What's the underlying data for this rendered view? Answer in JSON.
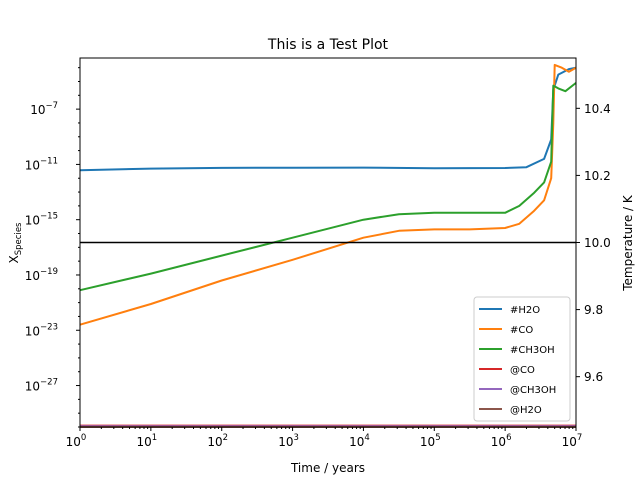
{
  "chart_data": {
    "type": "line",
    "title": "This is a Test Plot",
    "xlabel": "Time / years",
    "ylabel_left": "X",
    "ylabel_left_sub": "Species",
    "ylabel_right": "Temperature / K",
    "x_scale": "log",
    "y_left_scale": "log",
    "y_right_scale": "linear",
    "xlim": [
      1,
      10000000
    ],
    "ylim_left_log10": [
      -30.0,
      -3.3
    ],
    "ylim_right": [
      9.45,
      10.55
    ],
    "x_ticks": [
      {
        "base": "10",
        "exp": "0",
        "log10": 0
      },
      {
        "base": "10",
        "exp": "1",
        "log10": 1
      },
      {
        "base": "10",
        "exp": "2",
        "log10": 2
      },
      {
        "base": "10",
        "exp": "3",
        "log10": 3
      },
      {
        "base": "10",
        "exp": "4",
        "log10": 4
      },
      {
        "base": "10",
        "exp": "5",
        "log10": 5
      },
      {
        "base": "10",
        "exp": "6",
        "log10": 6
      },
      {
        "base": "10",
        "exp": "7",
        "log10": 7
      }
    ],
    "y_left_ticks": [
      {
        "base": "10",
        "exp": "−7",
        "log10": -7
      },
      {
        "base": "10",
        "exp": "−11",
        "log10": -11
      },
      {
        "base": "10",
        "exp": "−15",
        "log10": -15
      },
      {
        "base": "10",
        "exp": "−19",
        "log10": -19
      },
      {
        "base": "10",
        "exp": "−23",
        "log10": -23
      },
      {
        "base": "10",
        "exp": "−27",
        "log10": -27
      }
    ],
    "y_right_ticks": [
      {
        "label": "9.6",
        "value": 9.6
      },
      {
        "label": "9.8",
        "value": 9.8
      },
      {
        "label": "10.0",
        "value": 10.0
      },
      {
        "label": "10.2",
        "value": 10.2
      },
      {
        "label": "10.4",
        "value": 10.4
      }
    ],
    "legend_position": "lower-right",
    "series": [
      {
        "name": "#H2O",
        "color": "#1f77b4",
        "axis": "left",
        "points_log10": [
          [
            0,
            -11.42
          ],
          [
            1,
            -11.3
          ],
          [
            2,
            -11.25
          ],
          [
            3,
            -11.24
          ],
          [
            4,
            -11.23
          ],
          [
            5,
            -11.28
          ],
          [
            6,
            -11.26
          ],
          [
            6.3,
            -11.2
          ],
          [
            6.55,
            -10.6
          ],
          [
            6.65,
            -9.2
          ],
          [
            6.68,
            -5.6
          ],
          [
            6.75,
            -4.5
          ],
          [
            6.9,
            -4.1
          ],
          [
            7,
            -4.0
          ]
        ]
      },
      {
        "name": "#CO",
        "color": "#ff7f0e",
        "axis": "left",
        "points_log10": [
          [
            0,
            -22.6
          ],
          [
            1,
            -21.1
          ],
          [
            2,
            -19.4
          ],
          [
            3,
            -17.9
          ],
          [
            4,
            -16.3
          ],
          [
            4.5,
            -15.8
          ],
          [
            5,
            -15.7
          ],
          [
            5.5,
            -15.7
          ],
          [
            6,
            -15.6
          ],
          [
            6.2,
            -15.3
          ],
          [
            6.4,
            -14.4
          ],
          [
            6.55,
            -13.6
          ],
          [
            6.65,
            -12.0
          ],
          [
            6.68,
            -8.0
          ],
          [
            6.7,
            -3.8
          ],
          [
            6.8,
            -4.0
          ],
          [
            6.9,
            -4.3
          ],
          [
            7,
            -4.0
          ]
        ]
      },
      {
        "name": "#CH3OH",
        "color": "#2ca02c",
        "axis": "left",
        "points_log10": [
          [
            0,
            -20.1
          ],
          [
            1,
            -18.9
          ],
          [
            2,
            -17.6
          ],
          [
            3,
            -16.3
          ],
          [
            4,
            -15.0
          ],
          [
            4.5,
            -14.6
          ],
          [
            5,
            -14.5
          ],
          [
            5.5,
            -14.5
          ],
          [
            6,
            -14.5
          ],
          [
            6.2,
            -14.0
          ],
          [
            6.4,
            -13.1
          ],
          [
            6.55,
            -12.3
          ],
          [
            6.65,
            -10.8
          ],
          [
            6.68,
            -5.3
          ],
          [
            6.75,
            -5.5
          ],
          [
            6.85,
            -5.7
          ],
          [
            7,
            -5.1
          ]
        ]
      },
      {
        "name": "@CO",
        "color": "#d62728",
        "axis": "left",
        "points_log10": [
          [
            0,
            -29.9
          ],
          [
            7,
            -29.9
          ]
        ]
      },
      {
        "name": "@CH3OH",
        "color": "#9467bd",
        "axis": "left",
        "points_log10": [
          [
            0,
            -29.95
          ],
          [
            7,
            -29.95
          ]
        ]
      },
      {
        "name": "@H2O",
        "color": "#8c564b",
        "axis": "left",
        "points_log10": [
          [
            0,
            -30.0
          ],
          [
            7,
            -30.0
          ]
        ]
      }
    ],
    "temperature": {
      "color": "#000000",
      "axis": "right",
      "value": 10.0
    }
  }
}
